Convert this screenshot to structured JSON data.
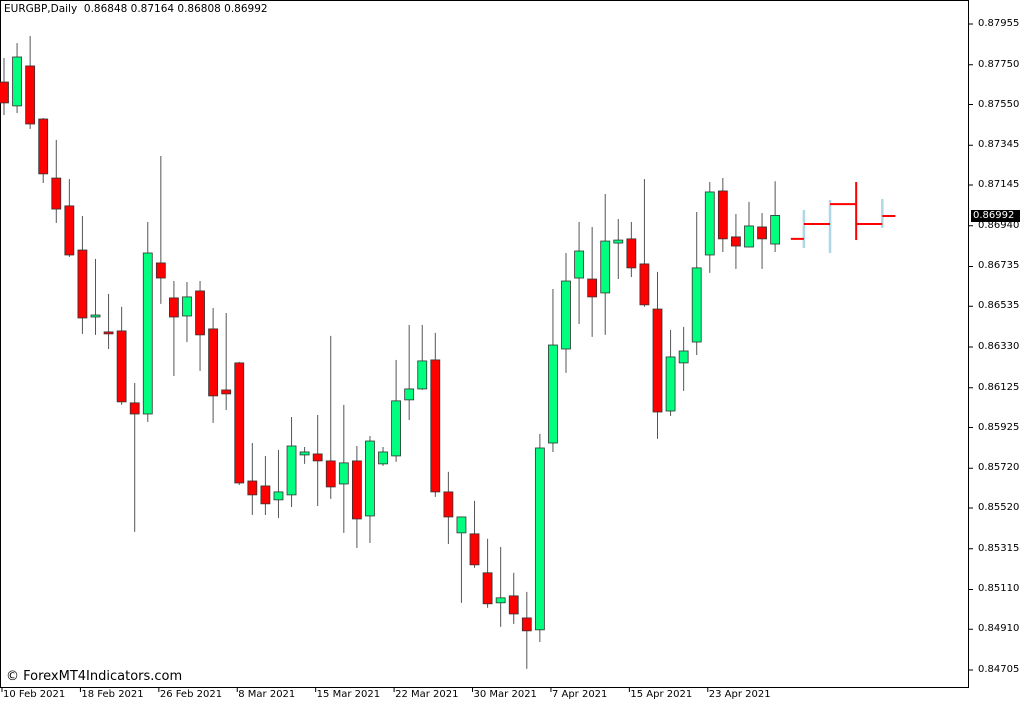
{
  "header": {
    "symbol_timeframe": "EURGBP,Daily",
    "ohlc_text": "0.86848 0.87164 0.86808 0.86992"
  },
  "watermark": "© ForexMT4Indicators.com",
  "current_price": "0.86992",
  "colors": {
    "bull": "#00FF7F",
    "bear": "#FF0000",
    "wick": "#555555",
    "indicator_red": "#FF0000",
    "indicator_blue": "#ADD8E6",
    "current_price_bg": "#000000"
  },
  "chart_data": {
    "type": "candlestick",
    "title": "EURGBP,Daily",
    "ylim": [
      0.84705,
      0.87955
    ],
    "grid": false,
    "y_ticks": [
      "0.87955",
      "0.87750",
      "0.87550",
      "0.87345",
      "0.87145",
      "0.86940",
      "0.86735",
      "0.86535",
      "0.86330",
      "0.86125",
      "0.85925",
      "0.85720",
      "0.85520",
      "0.85315",
      "0.85110",
      "0.84910",
      "0.84705"
    ],
    "x_ticks": [
      {
        "label": "10 Feb 2021",
        "bar": 0
      },
      {
        "label": "18 Feb 2021",
        "bar": 6
      },
      {
        "label": "26 Feb 2021",
        "bar": 12
      },
      {
        "label": "8 Mar 2021",
        "bar": 18
      },
      {
        "label": "15 Mar 2021",
        "bar": 24
      },
      {
        "label": "22 Mar 2021",
        "bar": 30
      },
      {
        "label": "30 Mar 2021",
        "bar": 36
      },
      {
        "label": "7 Apr 2021",
        "bar": 42
      },
      {
        "label": "15 Apr 2021",
        "bar": 48
      },
      {
        "label": "23 Apr 2021",
        "bar": 54
      }
    ],
    "ohlc": [
      [
        0.87663,
        0.87784,
        0.87497,
        0.87558
      ],
      [
        0.87543,
        0.87859,
        0.87507,
        0.87789
      ],
      [
        0.87744,
        0.87895,
        0.87427,
        0.87452
      ],
      [
        0.87477,
        0.87482,
        0.87155,
        0.87201
      ],
      [
        0.8718,
        0.87372,
        0.86954,
        0.87024
      ],
      [
        0.8704,
        0.87175,
        0.86783,
        0.86793
      ],
      [
        0.86818,
        0.86989,
        0.86396,
        0.86476
      ],
      [
        0.86481,
        0.86773,
        0.86391,
        0.86491
      ],
      [
        0.86406,
        0.86597,
        0.8632,
        0.86396
      ],
      [
        0.86411,
        0.86532,
        0.86039,
        0.86054
      ],
      [
        0.86049,
        0.86149,
        0.854,
        0.85993
      ],
      [
        0.85993,
        0.86959,
        0.85953,
        0.86803
      ],
      [
        0.86753,
        0.87291,
        0.86547,
        0.86677
      ],
      [
        0.86577,
        0.86662,
        0.86184,
        0.86481
      ],
      [
        0.86486,
        0.86657,
        0.86355,
        0.86582
      ],
      [
        0.86612,
        0.86662,
        0.8621,
        0.86391
      ],
      [
        0.86421,
        0.86526,
        0.85948,
        0.86084
      ],
      [
        0.86114,
        0.86501,
        0.86013,
        0.86094
      ],
      [
        0.8625,
        0.86255,
        0.85636,
        0.85646
      ],
      [
        0.85656,
        0.85847,
        0.85485,
        0.85586
      ],
      [
        0.85631,
        0.85782,
        0.85485,
        0.85541
      ],
      [
        0.85561,
        0.85812,
        0.8547,
        0.85601
      ],
      [
        0.85586,
        0.85978,
        0.85525,
        0.85832
      ],
      [
        0.85787,
        0.85827,
        0.85742,
        0.85802
      ],
      [
        0.85792,
        0.85988,
        0.8553,
        0.85757
      ],
      [
        0.85757,
        0.86386,
        0.85566,
        0.85626
      ],
      [
        0.85641,
        0.86039,
        0.85395,
        0.85747
      ],
      [
        0.85757,
        0.85832,
        0.85319,
        0.85465
      ],
      [
        0.8548,
        0.85882,
        0.85344,
        0.85857
      ],
      [
        0.85742,
        0.85827,
        0.85732,
        0.85802
      ],
      [
        0.85782,
        0.86265,
        0.85752,
        0.86059
      ],
      [
        0.86064,
        0.86441,
        0.85963,
        0.86119
      ],
      [
        0.86119,
        0.86441,
        0.86114,
        0.8626
      ],
      [
        0.86265,
        0.86401,
        0.85576,
        0.85601
      ],
      [
        0.85601,
        0.85702,
        0.85339,
        0.85475
      ],
      [
        0.85395,
        0.85475,
        0.85043,
        0.85475
      ],
      [
        0.8539,
        0.85556,
        0.85219,
        0.85234
      ],
      [
        0.85194,
        0.85365,
        0.85018,
        0.85038
      ],
      [
        0.85043,
        0.85324,
        0.84922,
        0.85068
      ],
      [
        0.85078,
        0.85194,
        0.84937,
        0.84987
      ],
      [
        0.84967,
        0.85098,
        0.84711,
        0.84902
      ],
      [
        0.84907,
        0.85893,
        0.84846,
        0.85822
      ],
      [
        0.85847,
        0.86622,
        0.85802,
        0.8634
      ],
      [
        0.8632,
        0.86803,
        0.862,
        0.86662
      ],
      [
        0.86677,
        0.86959,
        0.86446,
        0.86813
      ],
      [
        0.86672,
        0.86934,
        0.86381,
        0.86582
      ],
      [
        0.86602,
        0.871,
        0.86391,
        0.86863
      ],
      [
        0.86853,
        0.86974,
        0.86672,
        0.86868
      ],
      [
        0.86874,
        0.86959,
        0.86682,
        0.86728
      ],
      [
        0.86748,
        0.87175,
        0.86532,
        0.86542
      ],
      [
        0.86521,
        0.86708,
        0.85868,
        0.86003
      ],
      [
        0.86008,
        0.86416,
        0.85983,
        0.8628
      ],
      [
        0.8625,
        0.86431,
        0.86109,
        0.8631
      ],
      [
        0.86355,
        0.87009,
        0.8629,
        0.86728
      ],
      [
        0.86793,
        0.8716,
        0.86703,
        0.8711
      ],
      [
        0.87115,
        0.8718,
        0.86808,
        0.86874
      ],
      [
        0.86884,
        0.86999,
        0.86723,
        0.86838
      ],
      [
        0.86833,
        0.8706,
        0.86833,
        0.86939
      ],
      [
        0.86934,
        0.87004,
        0.86723,
        0.86874
      ],
      [
        0.86848,
        0.87164,
        0.86808,
        0.86992
      ]
    ],
    "indicator": {
      "red_levels": [
        {
          "from_bar": 60.2,
          "to_bar": 61.2,
          "price": 0.86874
        },
        {
          "from_bar": 61.2,
          "to_bar": 63.2,
          "price": 0.86949
        },
        {
          "from_bar": 63.2,
          "to_bar": 65.2,
          "price": 0.87049
        },
        {
          "from_bar": 65.2,
          "to_bar": 67.2,
          "price": 0.86949
        },
        {
          "from_bar": 67.2,
          "to_bar": 68.2,
          "price": 0.86989
        }
      ],
      "blue_ranges": [
        {
          "bar": 61.2,
          "high": 0.87019,
          "low": 0.86828
        },
        {
          "bar": 63.2,
          "high": 0.8707,
          "low": 0.86803
        },
        {
          "bar": 67.2,
          "high": 0.87075,
          "low": 0.86929
        }
      ],
      "red_ranges": [
        {
          "bar": 65.2,
          "high": 0.8716,
          "low": 0.86868
        }
      ]
    }
  }
}
